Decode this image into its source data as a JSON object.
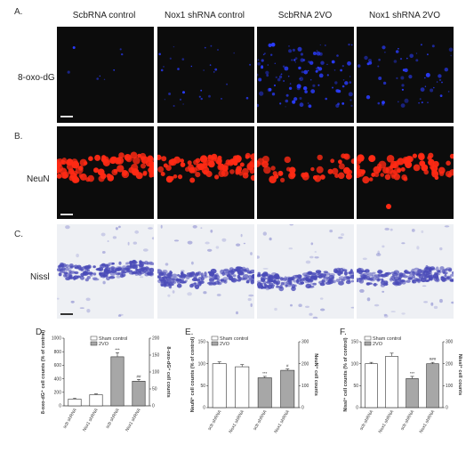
{
  "colors": {
    "dapi_blue": "#2a3cff",
    "neun_red": "#ff2a14",
    "nissl_purple": "#4a4bb8",
    "nissl_bg": "#eef0f4",
    "dark_bg": "#0c0c0c",
    "bar_white": "#ffffff",
    "bar_gray": "#a7a7a7"
  },
  "panels": {
    "A": "A.",
    "B": "B.",
    "C": "C.",
    "D": "D.",
    "E": "E.",
    "F": "F."
  },
  "column_headers": [
    "ScbRNA control",
    "Nox1 shRNA control",
    "ScbRNA 2VO",
    "Nox1 shRNA 2VO"
  ],
  "row_labels": {
    "A": "8-oxo-dG",
    "B": "NeuN",
    "C": "Nissl"
  },
  "chart_data": [
    {
      "type": "bar",
      "panel": "D",
      "categories": [
        "scb shRNA",
        "Nox1 shRNA",
        "scb shRNA",
        "Nox1 shRNA"
      ],
      "legend": [
        "Sham control",
        "2VO"
      ],
      "values": [
        100,
        165,
        725,
        365
      ],
      "errors": [
        15,
        12,
        60,
        25
      ],
      "bar_fill": [
        "white",
        "white",
        "gray",
        "gray"
      ],
      "annotations": [
        "",
        "",
        "***",
        "##"
      ],
      "ylabel": "8-oxo-dG⁺ cell counts (% of control)",
      "ylabel_right": "8-oxo-dG⁺ cell counts",
      "ylim": [
        0,
        1000
      ],
      "yticks": [
        "0",
        "200",
        "400",
        "600",
        "800",
        "1000"
      ],
      "ylim_right": [
        0,
        200
      ],
      "yticks_right": [
        "0",
        "50",
        "100",
        "150",
        "200"
      ]
    },
    {
      "type": "bar",
      "panel": "E",
      "categories": [
        "scb shRNA",
        "Nox1 shRNA",
        "scb shRNA",
        "Nox1 shRNA"
      ],
      "legend": [
        "Sham control",
        "2VO"
      ],
      "values": [
        100,
        93,
        68,
        85
      ],
      "errors": [
        4,
        5,
        3,
        3
      ],
      "bar_fill": [
        "white",
        "white",
        "gray",
        "gray"
      ],
      "annotations": [
        "",
        "",
        "***",
        "#"
      ],
      "ylabel": "NeuN⁺ cell counts (% of control)",
      "ylabel_right": "NeuN⁺ cell counts",
      "ylim": [
        0,
        150
      ],
      "yticks": [
        "0",
        "50",
        "100",
        "150"
      ],
      "ylim_right": [
        0,
        300
      ],
      "yticks_right": [
        "0",
        "100",
        "200",
        "300"
      ]
    },
    {
      "type": "bar",
      "panel": "F",
      "categories": [
        "scb shRNA",
        "Nox1 shRNA",
        "scb shRNA",
        "Nox1 shRNA"
      ],
      "legend": [
        "Sham control",
        "2VO"
      ],
      "values": [
        100,
        117,
        66,
        100
      ],
      "errors": [
        3,
        7,
        5,
        3
      ],
      "bar_fill": [
        "white",
        "white",
        "gray",
        "gray"
      ],
      "annotations": [
        "",
        "",
        "***",
        "###"
      ],
      "ylabel": "Nissl⁺ cell counts (% of control)",
      "ylabel_right": "Nissl⁺ cell counts",
      "ylim": [
        0,
        150
      ],
      "yticks": [
        "0",
        "50",
        "100",
        "150"
      ],
      "ylim_right": [
        0,
        300
      ],
      "yticks_right": [
        "0",
        "100",
        "200",
        "300"
      ]
    }
  ]
}
